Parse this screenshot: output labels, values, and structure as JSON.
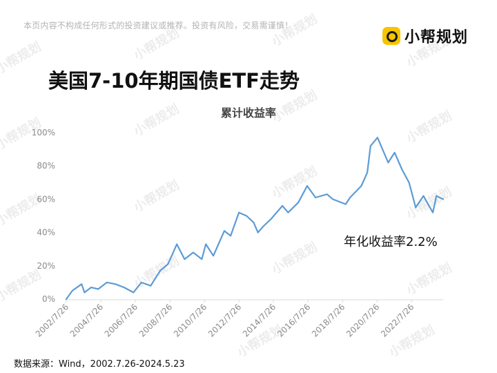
{
  "header": {
    "disclaimer": "本页内容不构成任何形式的投资建议或推荐。投资有风险，交易需谨慎！",
    "brand_name": "小帮规划",
    "brand_icon": "brand-logo-icon"
  },
  "watermark": "小帮规划",
  "footer": {
    "source": "数据来源：Wind，2002.7.26-2024.5.23"
  },
  "colors": {
    "line": "#5b9bd5",
    "brand": "#f6c400"
  },
  "chart_data": {
    "type": "line",
    "title": "美国7-10年期国债ETF走势",
    "subtitle": "累计收益率",
    "xlabel": "",
    "ylabel": "",
    "ylim": [
      0,
      100
    ],
    "y_ticks": [
      "0%",
      "20%",
      "40%",
      "60%",
      "80%",
      "100%"
    ],
    "x_ticks": [
      "2002/7/26",
      "2004/7/26",
      "2006/7/26",
      "2008/7/26",
      "2010/7/26",
      "2012/7/26",
      "2014/7/26",
      "2016/7/26",
      "2018/7/26",
      "2020/7/26",
      "2022/7/26"
    ],
    "grid": false,
    "annotation": "年化收益率2.2%",
    "series": [
      {
        "x": [
          "2002-07-26",
          "2002-12-01",
          "2003-06-15",
          "2003-08-15",
          "2004-01-01",
          "2004-06-01",
          "2004-12-01",
          "2005-06-01",
          "2005-12-01",
          "2006-06-15",
          "2006-12-01",
          "2007-06-15",
          "2008-01-01",
          "2008-06-15",
          "2008-12-20",
          "2009-06-01",
          "2009-12-01",
          "2010-06-01",
          "2010-08-25",
          "2011-02-01",
          "2011-09-20",
          "2012-02-01",
          "2012-07-25",
          "2013-01-01",
          "2013-06-01",
          "2013-09-01",
          "2014-01-01",
          "2014-06-01",
          "2015-01-30",
          "2015-06-01",
          "2016-01-01",
          "2016-07-08",
          "2017-01-01",
          "2017-09-01",
          "2018-01-01",
          "2018-10-01",
          "2019-01-01",
          "2019-08-28",
          "2020-01-01",
          "2020-03-09",
          "2020-08-04",
          "2021-03-18",
          "2021-08-01",
          "2022-01-01",
          "2022-06-01",
          "2022-10-20",
          "2023-04-01",
          "2023-10-19",
          "2024-01-01",
          "2024-05-23"
        ],
        "y": [
          0,
          5,
          9,
          4,
          7,
          6,
          10,
          9,
          7,
          4,
          10,
          8,
          17,
          21,
          33,
          24,
          28,
          24,
          33,
          26,
          41,
          38,
          52,
          50,
          46,
          40,
          44,
          48,
          56,
          52,
          58,
          68,
          61,
          63,
          60,
          57,
          61,
          68,
          76,
          92,
          97,
          82,
          88,
          78,
          70,
          55,
          62,
          52,
          62,
          60
        ]
      }
    ]
  }
}
